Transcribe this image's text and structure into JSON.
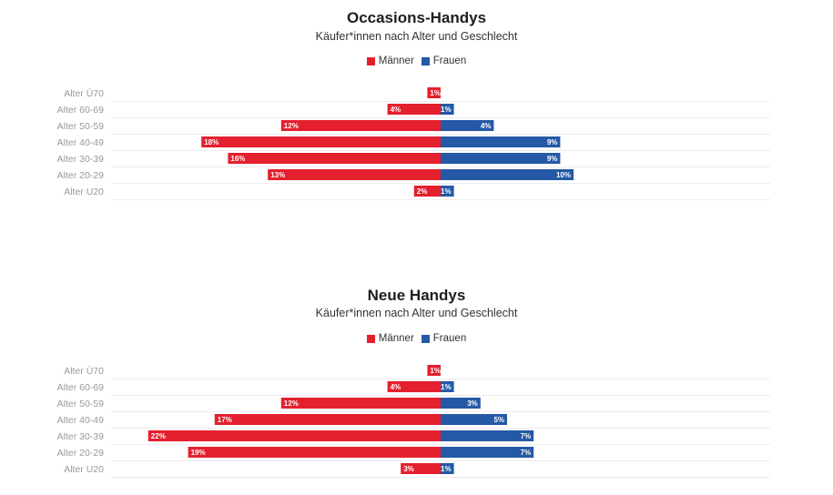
{
  "colors": {
    "maenner": "#e5202e",
    "frauen": "#2559a6",
    "grid": "#ececec",
    "axis_label": "#999999"
  },
  "chart_data": [
    {
      "type": "bar",
      "title": "Occasions-Handys",
      "subtitle": "Käufer*innen nach Alter und Geschlecht",
      "legend": [
        "Männer",
        "Frauen"
      ],
      "legend_placement": "top-center",
      "orientation": "horizontal-diverging",
      "categories": [
        "Alter Ü70",
        "Alter 60-69",
        "Alter 50-59",
        "Alter 40-49",
        "Alter 30-39",
        "Alter 20-29",
        "Alter U20"
      ],
      "series": [
        {
          "name": "Männer",
          "values": [
            1,
            4,
            12,
            18,
            16,
            13,
            2
          ],
          "labels": [
            "1%",
            "4%",
            "12%",
            "18%",
            "16%",
            "13%",
            "2%"
          ]
        },
        {
          "name": "Frauen",
          "values": [
            0,
            1,
            4,
            9,
            9,
            10,
            1
          ],
          "labels": [
            "",
            "1%",
            "4%",
            "9%",
            "9%",
            "10%",
            "1%"
          ]
        }
      ]
    },
    {
      "type": "bar",
      "title": "Neue Handys",
      "subtitle": "Käufer*innen nach Alter und Geschlecht",
      "legend": [
        "Männer",
        "Frauen"
      ],
      "legend_placement": "top-center",
      "orientation": "horizontal-diverging",
      "categories": [
        "Alter Ü70",
        "Alter 60-69",
        "Alter 50-59",
        "Alter 40-49",
        "Alter 30-39",
        "Alter 20-29",
        "Alter U20"
      ],
      "series": [
        {
          "name": "Männer",
          "values": [
            1,
            4,
            12,
            17,
            22,
            19,
            3
          ],
          "labels": [
            "1%",
            "4%",
            "12%",
            "17%",
            "22%",
            "19%",
            "3%"
          ]
        },
        {
          "name": "Frauen",
          "values": [
            0,
            1,
            3,
            5,
            7,
            7,
            1
          ],
          "labels": [
            "",
            "1%",
            "3%",
            "5%",
            "7%",
            "7%",
            "1%"
          ]
        }
      ]
    }
  ]
}
